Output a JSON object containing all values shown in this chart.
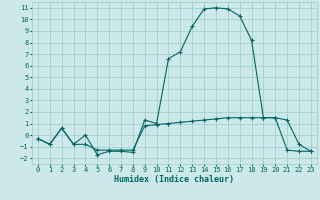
{
  "title": "",
  "xlabel": "Humidex (Indice chaleur)",
  "ylabel": "",
  "background_color": "#cce8e8",
  "grid_color": "#99cccc",
  "line_color": "#006666",
  "xlim": [
    -0.5,
    23.5
  ],
  "ylim": [
    -2.5,
    11.5
  ],
  "yticks": [
    -2,
    -1,
    0,
    1,
    2,
    3,
    4,
    5,
    6,
    7,
    8,
    9,
    10,
    11
  ],
  "xticks": [
    0,
    1,
    2,
    3,
    4,
    5,
    6,
    7,
    8,
    9,
    10,
    11,
    12,
    13,
    14,
    15,
    16,
    17,
    18,
    19,
    20,
    21,
    22,
    23
  ],
  "line1_x": [
    0,
    1,
    2,
    3,
    4,
    5,
    6,
    7,
    8,
    9,
    10,
    11,
    12,
    13,
    14,
    15,
    16,
    17,
    18,
    19,
    20,
    21,
    22,
    23
  ],
  "line1_y": [
    -0.3,
    -0.8,
    0.6,
    -0.8,
    0.0,
    -1.7,
    -1.4,
    -1.4,
    -1.5,
    1.3,
    1.0,
    6.6,
    7.2,
    9.4,
    10.9,
    11.0,
    10.9,
    10.3,
    8.2,
    1.5,
    1.5,
    1.3,
    -0.8,
    -1.4
  ],
  "line2_x": [
    0,
    1,
    2,
    3,
    4,
    5,
    6,
    7,
    8,
    9,
    10,
    11,
    12,
    13,
    14,
    15,
    16,
    17,
    18,
    19,
    20,
    21,
    22,
    23
  ],
  "line2_y": [
    -0.3,
    -0.8,
    0.6,
    -0.8,
    -0.8,
    -1.3,
    -1.3,
    -1.3,
    -1.3,
    0.8,
    0.9,
    1.0,
    1.1,
    1.2,
    1.3,
    1.4,
    1.5,
    1.5,
    1.5,
    1.5,
    1.5,
    -1.3,
    -1.4,
    -1.4
  ],
  "tick_fontsize": 5.0,
  "xlabel_fontsize": 6.0,
  "linewidth": 0.8,
  "markersize": 2.5,
  "markeredgewidth": 0.8
}
